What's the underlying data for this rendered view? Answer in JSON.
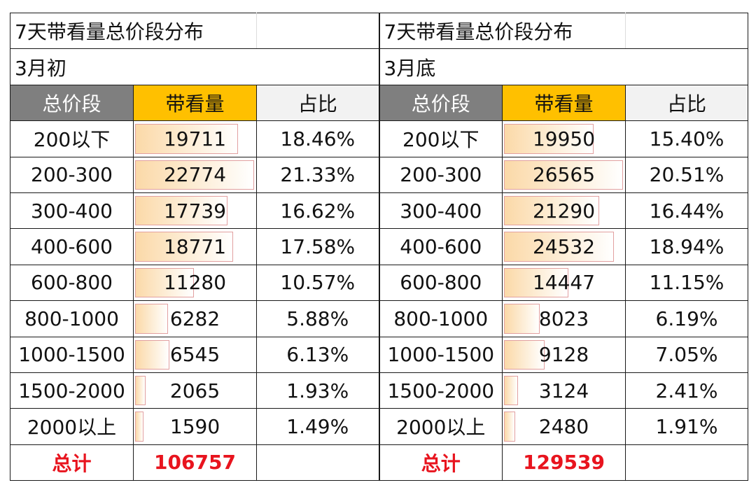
{
  "tables": [
    {
      "title": "7天带看量总价段分布",
      "period": "3月初",
      "headers": [
        "总价段",
        "带看量",
        "占比"
      ],
      "rows": [
        {
          "range": "200以下",
          "views": 19711,
          "views_text": "19711",
          "share": "18.46%"
        },
        {
          "range": "200-300",
          "views": 22774,
          "views_text": "22774",
          "share": "21.33%"
        },
        {
          "range": "300-400",
          "views": 17739,
          "views_text": "17739",
          "share": "16.62%"
        },
        {
          "range": "400-600",
          "views": 18771,
          "views_text": "18771",
          "share": "17.58%"
        },
        {
          "range": "600-800",
          "views": 11280,
          "views_text": "11280",
          "share": "10.57%"
        },
        {
          "range": "800-1000",
          "views": 6282,
          "views_text": "6282",
          "share": "5.88%"
        },
        {
          "range": "1000-1500",
          "views": 6545,
          "views_text": "6545",
          "share": "6.13%"
        },
        {
          "range": "1500-2000",
          "views": 2065,
          "views_text": "2065",
          "share": "1.93%"
        },
        {
          "range": "2000以上",
          "views": 1590,
          "views_text": "1590",
          "share": "1.49%"
        }
      ],
      "total_label": "总计",
      "total_value": "106757"
    },
    {
      "title": "7天带看量总价段分布",
      "period": "3月底",
      "headers": [
        "总价段",
        "带看量",
        "占比"
      ],
      "rows": [
        {
          "range": "200以下",
          "views": 19950,
          "views_text": "19950",
          "share": "15.40%"
        },
        {
          "range": "200-300",
          "views": 26565,
          "views_text": "26565",
          "share": "20.51%"
        },
        {
          "range": "300-400",
          "views": 21290,
          "views_text": "21290",
          "share": "16.44%"
        },
        {
          "range": "400-600",
          "views": 24532,
          "views_text": "24532",
          "share": "18.94%"
        },
        {
          "range": "600-800",
          "views": 14447,
          "views_text": "14447",
          "share": "11.15%"
        },
        {
          "range": "800-1000",
          "views": 8023,
          "views_text": "8023",
          "share": "6.19%"
        },
        {
          "range": "1000-1500",
          "views": 9128,
          "views_text": "9128",
          "share": "7.05%"
        },
        {
          "range": "1500-2000",
          "views": 3124,
          "views_text": "3124",
          "share": "2.41%"
        },
        {
          "range": "2000以上",
          "views": 2480,
          "views_text": "2480",
          "share": "1.91%"
        }
      ],
      "total_label": "总计",
      "total_value": "129539"
    }
  ],
  "colors": {
    "header_gray": "#7f7f7f",
    "header_gold": "#ffc000",
    "header_light": "#f2f2f2",
    "total_red": "#e8141e",
    "databar_fill": "#fbd9a8",
    "databar_border": "#e2a0a0"
  }
}
